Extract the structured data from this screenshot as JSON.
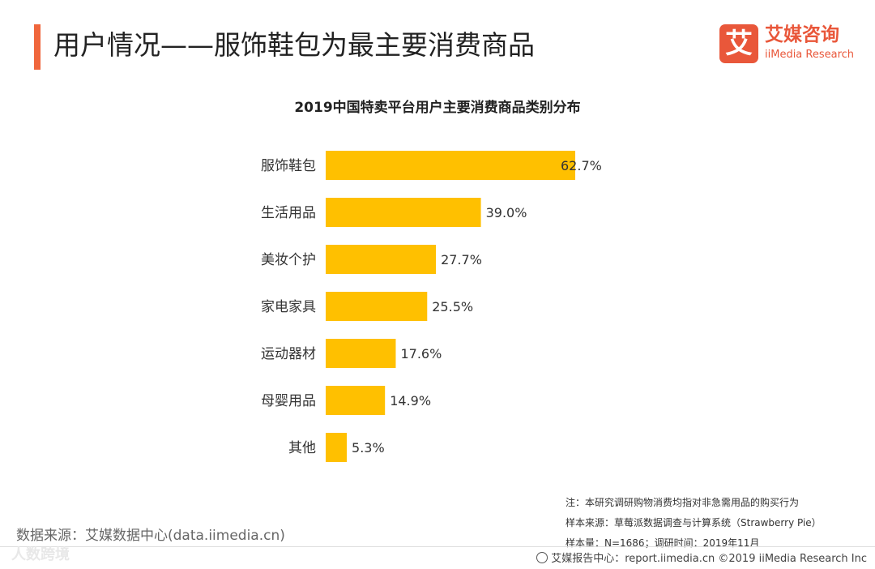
{
  "header": {
    "title": "用户情况——服饰鞋包为最主要消费商品",
    "accent_color": "#f0663c"
  },
  "logo": {
    "mark": "艾",
    "name": "艾媒咨询",
    "sub": "iiMedia Research",
    "color": "#e9573a"
  },
  "chart_data": {
    "type": "bar",
    "orientation": "horizontal",
    "title": "2019中国特卖平台用户主要消费商品类别分布",
    "categories": [
      "服饰鞋包",
      "生活用品",
      "美妆个护",
      "家电家具",
      "运动器材",
      "母婴用品",
      "其他"
    ],
    "values": [
      62.7,
      39.0,
      27.7,
      25.5,
      17.6,
      14.9,
      5.3
    ],
    "labels": [
      "62.7%",
      "39.0%",
      "27.7%",
      "25.5%",
      "17.6%",
      "14.9%",
      "5.3%"
    ],
    "unit": "%",
    "bar_color": "#ffc000",
    "xlim": [
      0,
      62.7
    ]
  },
  "notes": {
    "note": "注：本研究调研购物消费均指对非急需用品的购买行为",
    "sample_source": "样本来源：草莓派数据调查与计算系统（Strawberry Pie）",
    "sample_size": "样本量：N=1686；调研时间：2019年11月"
  },
  "source": "数据来源：艾媒数据中心(data.iimedia.cn)",
  "watermark": "人数跨境",
  "footer": "艾媒报告中心：report.iimedia.cn  ©2019  iiMedia Research  Inc"
}
